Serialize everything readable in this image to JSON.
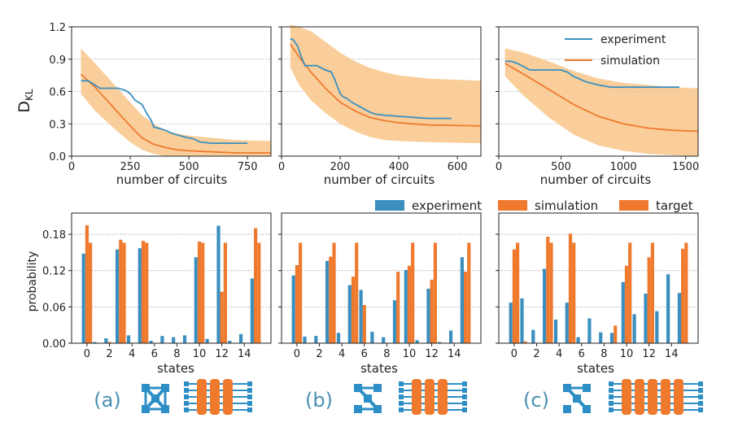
{
  "colors": {
    "experiment": "#3b8fc0",
    "simulation": "#ef7a2e",
    "band": "#f8c98f",
    "grid": "#9a9a9a",
    "label_blue": "#4a8fb0",
    "icon_blue": "#2d8fc6",
    "icon_orange": "#ef7a2e"
  },
  "top_panels": {
    "ylabel_main": "D",
    "ylabel_sub": "KL",
    "xlabel": "number of circuits"
  },
  "bottom_panels": {
    "ylabel": "probability",
    "xlabel": "states"
  },
  "legend_top": {
    "experiment": "experiment",
    "simulation": "simulation",
    "placement": "upper-right of panel (c)"
  },
  "legend_bottom": {
    "experiment": "experiment",
    "simulation": "simulation",
    "target": "target",
    "placement": "top, above bottom row"
  },
  "panel_labels": [
    "(a)",
    "(b)",
    "(c)"
  ],
  "chart_data": [
    {
      "type": "line",
      "panel": "a-top",
      "xlim": [
        0,
        850
      ],
      "ylim": [
        0,
        1.2
      ],
      "xticks": [
        "0",
        "250",
        "500",
        "750"
      ],
      "yticks": [
        "0.0",
        "0.3",
        "0.6",
        "0.9",
        "1.2"
      ],
      "grid": "horizontal dotted",
      "series": [
        {
          "name": "experiment",
          "x": [
            40,
            70,
            100,
            120,
            140,
            180,
            200,
            230,
            250,
            270,
            300,
            320,
            340,
            350,
            370,
            400,
            430,
            480,
            520,
            550,
            600,
            700,
            750
          ],
          "y": [
            0.7,
            0.7,
            0.66,
            0.63,
            0.63,
            0.63,
            0.63,
            0.61,
            0.58,
            0.52,
            0.48,
            0.4,
            0.33,
            0.27,
            0.26,
            0.24,
            0.21,
            0.18,
            0.16,
            0.13,
            0.12,
            0.12,
            0.12
          ]
        },
        {
          "name": "simulation",
          "x": [
            40,
            100,
            150,
            200,
            250,
            300,
            350,
            400,
            450,
            500,
            600,
            700,
            850
          ],
          "y": [
            0.76,
            0.64,
            0.52,
            0.4,
            0.28,
            0.17,
            0.11,
            0.08,
            0.06,
            0.05,
            0.04,
            0.03,
            0.03
          ]
        },
        {
          "name": "band",
          "x": [
            40,
            100,
            150,
            200,
            250,
            300,
            350,
            400,
            450,
            500,
            600,
            700,
            850
          ],
          "upper": [
            1.0,
            0.86,
            0.74,
            0.62,
            0.5,
            0.38,
            0.3,
            0.24,
            0.21,
            0.19,
            0.17,
            0.15,
            0.14
          ],
          "lower": [
            0.58,
            0.42,
            0.32,
            0.22,
            0.13,
            0.06,
            0.02,
            0.0,
            0.0,
            0.0,
            0.0,
            0.0,
            0.0
          ]
        }
      ]
    },
    {
      "type": "line",
      "panel": "b-top",
      "xlim": [
        0,
        680
      ],
      "ylim": [
        0,
        1.2
      ],
      "xticks": [
        "0",
        "200",
        "400",
        "600"
      ],
      "yticks": [
        "0.0",
        "0.3",
        "0.6",
        "0.9",
        "1.2"
      ],
      "grid": "horizontal dotted",
      "series": [
        {
          "name": "experiment",
          "x": [
            30,
            40,
            55,
            65,
            80,
            100,
            120,
            150,
            170,
            180,
            190,
            200,
            210,
            220,
            240,
            260,
            280,
            300,
            320,
            350,
            400,
            450,
            500,
            580
          ],
          "y": [
            1.09,
            1.08,
            1.02,
            0.94,
            0.84,
            0.84,
            0.84,
            0.8,
            0.78,
            0.72,
            0.65,
            0.58,
            0.55,
            0.54,
            0.5,
            0.47,
            0.44,
            0.41,
            0.39,
            0.38,
            0.37,
            0.36,
            0.35,
            0.35
          ]
        },
        {
          "name": "simulation",
          "x": [
            30,
            60,
            100,
            150,
            200,
            250,
            300,
            350,
            400,
            500,
            680
          ],
          "y": [
            1.04,
            0.92,
            0.78,
            0.63,
            0.5,
            0.42,
            0.36,
            0.33,
            0.31,
            0.29,
            0.28
          ]
        },
        {
          "name": "band",
          "x": [
            30,
            60,
            100,
            150,
            200,
            250,
            300,
            350,
            400,
            500,
            680
          ],
          "upper": [
            1.22,
            1.2,
            1.16,
            1.06,
            0.96,
            0.88,
            0.82,
            0.78,
            0.75,
            0.72,
            0.7
          ],
          "lower": [
            0.82,
            0.66,
            0.52,
            0.4,
            0.3,
            0.23,
            0.18,
            0.15,
            0.14,
            0.13,
            0.12
          ]
        }
      ]
    },
    {
      "type": "line",
      "panel": "c-top",
      "xlim": [
        0,
        1600
      ],
      "ylim": [
        0,
        1.2
      ],
      "xticks": [
        "0",
        "500",
        "1000",
        "1500"
      ],
      "yticks": [
        "0.0",
        "0.3",
        "0.6",
        "0.9",
        "1.2"
      ],
      "grid": "horizontal dotted",
      "series": [
        {
          "name": "experiment",
          "x": [
            50,
            100,
            150,
            200,
            250,
            300,
            400,
            500,
            550,
            600,
            700,
            800,
            900,
            1000,
            1200,
            1450
          ],
          "y": [
            0.88,
            0.88,
            0.86,
            0.83,
            0.8,
            0.8,
            0.8,
            0.8,
            0.78,
            0.74,
            0.69,
            0.66,
            0.64,
            0.64,
            0.64,
            0.64
          ]
        },
        {
          "name": "simulation",
          "x": [
            50,
            200,
            400,
            600,
            800,
            1000,
            1200,
            1400,
            1600
          ],
          "y": [
            0.86,
            0.76,
            0.62,
            0.48,
            0.37,
            0.3,
            0.26,
            0.24,
            0.23
          ]
        },
        {
          "name": "band",
          "x": [
            50,
            200,
            400,
            600,
            800,
            1000,
            1200,
            1400,
            1600
          ],
          "upper": [
            1.0,
            0.96,
            0.88,
            0.79,
            0.72,
            0.68,
            0.66,
            0.64,
            0.63
          ],
          "lower": [
            0.74,
            0.56,
            0.36,
            0.2,
            0.1,
            0.05,
            0.02,
            0.01,
            0.0
          ]
        }
      ]
    },
    {
      "type": "bar",
      "panel": "a-bottom",
      "categories": [
        0,
        1,
        2,
        3,
        4,
        5,
        6,
        7,
        8,
        9,
        10,
        11,
        12,
        13,
        14,
        15
      ],
      "xticks": [
        "0",
        "2",
        "4",
        "6",
        "8",
        "10",
        "12",
        "14"
      ],
      "ylim": [
        0,
        0.215
      ],
      "yticks": [
        "0.00",
        "0.06",
        "0.12",
        "0.18"
      ],
      "grid": "horizontal dotted",
      "series": [
        {
          "name": "experiment",
          "values": [
            0.148,
            0.002,
            0.008,
            0.155,
            0.013,
            0.157,
            0.004,
            0.012,
            0.01,
            0.013,
            0.142,
            0.007,
            0.194,
            0.004,
            0.015,
            0.107
          ]
        },
        {
          "name": "simulation",
          "values": [
            0.195,
            0.0,
            0.002,
            0.171,
            0.0,
            0.169,
            0.0,
            0.0,
            0.0,
            0.0,
            0.168,
            0.0,
            0.085,
            0.0,
            0.0,
            0.19
          ]
        },
        {
          "name": "target",
          "values": [
            0.166,
            0.0,
            0.0,
            0.166,
            0.0,
            0.166,
            0.0,
            0.0,
            0.0,
            0.0,
            0.166,
            0.0,
            0.166,
            0.0,
            0.0,
            0.166
          ]
        }
      ]
    },
    {
      "type": "bar",
      "panel": "b-bottom",
      "categories": [
        0,
        1,
        2,
        3,
        4,
        5,
        6,
        7,
        8,
        9,
        10,
        11,
        12,
        13,
        14,
        15
      ],
      "xticks": [
        "0",
        "2",
        "4",
        "6",
        "8",
        "10",
        "12",
        "14"
      ],
      "ylim": [
        0,
        0.215
      ],
      "yticks": [
        "0.00",
        "0.06",
        "0.12",
        "0.18"
      ],
      "grid": "horizontal dotted",
      "series": [
        {
          "name": "experiment",
          "values": [
            0.112,
            0.011,
            0.012,
            0.136,
            0.017,
            0.096,
            0.088,
            0.019,
            0.01,
            0.071,
            0.121,
            0.005,
            0.09,
            0.002,
            0.021,
            0.142
          ]
        },
        {
          "name": "simulation",
          "values": [
            0.129,
            0.0,
            0.0,
            0.143,
            0.0,
            0.11,
            0.063,
            0.0,
            0.0,
            0.118,
            0.128,
            0.0,
            0.105,
            0.0,
            0.0,
            0.118
          ]
        },
        {
          "name": "target",
          "values": [
            0.166,
            0.0,
            0.0,
            0.166,
            0.0,
            0.166,
            0.0,
            0.0,
            0.0,
            0.0,
            0.166,
            0.0,
            0.166,
            0.0,
            0.0,
            0.166
          ]
        }
      ]
    },
    {
      "type": "bar",
      "panel": "c-bottom",
      "categories": [
        0,
        1,
        2,
        3,
        4,
        5,
        6,
        7,
        8,
        9,
        10,
        11,
        12,
        13,
        14,
        15
      ],
      "xticks": [
        "0",
        "2",
        "4",
        "6",
        "8",
        "10",
        "12",
        "14"
      ],
      "ylim": [
        0,
        0.215
      ],
      "yticks": [
        "0.00",
        "0.06",
        "0.12",
        "0.18"
      ],
      "grid": "horizontal dotted",
      "series": [
        {
          "name": "experiment",
          "values": [
            0.067,
            0.074,
            0.022,
            0.123,
            0.039,
            0.067,
            0.01,
            0.041,
            0.018,
            0.017,
            0.101,
            0.048,
            0.082,
            0.053,
            0.114,
            0.083
          ]
        },
        {
          "name": "simulation",
          "values": [
            0.155,
            0.003,
            0.0,
            0.176,
            0.0,
            0.181,
            0.0,
            0.0,
            0.0,
            0.029,
            0.128,
            0.0,
            0.142,
            0.0,
            0.0,
            0.156
          ]
        },
        {
          "name": "target",
          "values": [
            0.166,
            0.0,
            0.0,
            0.166,
            0.0,
            0.166,
            0.0,
            0.0,
            0.0,
            0.0,
            0.166,
            0.0,
            0.166,
            0.0,
            0.0,
            0.166
          ]
        }
      ]
    }
  ]
}
